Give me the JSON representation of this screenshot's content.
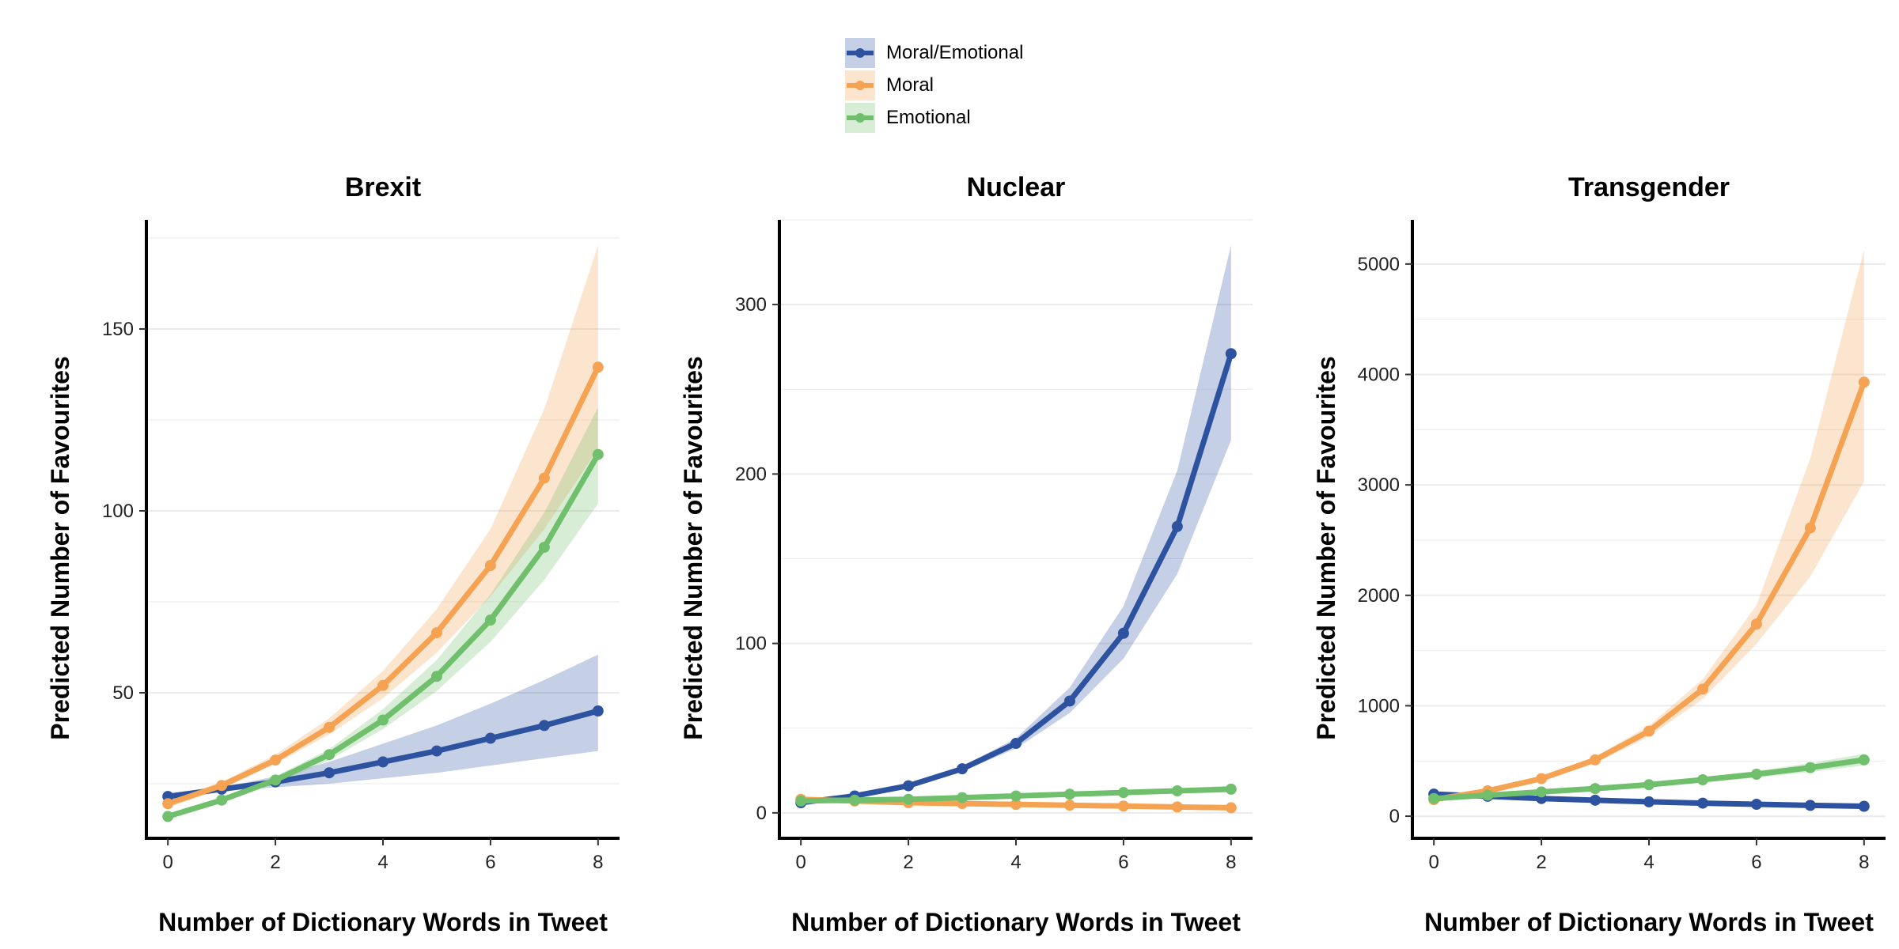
{
  "colors": {
    "moral_emotional": "#2d53a0",
    "moral": "#f5a352",
    "emotional": "#6fbf6c",
    "grid": "#ebebeb",
    "axis": "#000000"
  },
  "legend": {
    "items": [
      {
        "label": "Moral/Emotional",
        "color": "#2d53a0"
      },
      {
        "label": "Moral",
        "color": "#f5a352"
      },
      {
        "label": "Emotional",
        "color": "#6fbf6c"
      }
    ]
  },
  "chart_data": [
    {
      "type": "line",
      "title": "Brexit",
      "xlabel": "Number of Dictionary Words in Tweet",
      "ylabel": "Predicted Number of Favourites",
      "x": [
        0,
        1,
        2,
        3,
        4,
        5,
        6,
        7,
        8
      ],
      "xticks": [
        0,
        2,
        4,
        6,
        8
      ],
      "xlim": [
        -0.4,
        8.4
      ],
      "ylim": [
        10,
        180
      ],
      "yticks": [
        50,
        100,
        150
      ],
      "grid": true,
      "legend_position": "top-center",
      "series": [
        {
          "name": "Moral/Emotional",
          "color": "#2d53a0",
          "values": [
            21.5,
            23.5,
            25.5,
            28,
            31,
            34,
            37.5,
            41,
            45
          ],
          "lower": [
            21,
            23,
            24,
            25,
            26.5,
            28,
            30,
            32,
            34
          ],
          "upper": [
            22,
            24,
            27,
            31,
            36,
            41,
            47,
            53.5,
            60.5
          ]
        },
        {
          "name": "Moral",
          "color": "#f5a352",
          "values": [
            19.5,
            24.5,
            31.5,
            40.5,
            52,
            66.5,
            85,
            109,
            139.5
          ],
          "lower": [
            18.5,
            23.5,
            30.5,
            38.5,
            48.5,
            61,
            76.5,
            95,
            117
          ],
          "upper": [
            20.5,
            25.5,
            33,
            43,
            56,
            73,
            95,
            128,
            173
          ]
        },
        {
          "name": "Emotional",
          "color": "#6fbf6c",
          "values": [
            16,
            20.5,
            26,
            33,
            42.5,
            54.5,
            70,
            90,
            115.5
          ],
          "lower": [
            15.5,
            20,
            25,
            31.5,
            40,
            50.5,
            64,
            81,
            102
          ],
          "upper": [
            16.5,
            21,
            27,
            34.5,
            45.5,
            59,
            77,
            99.5,
            128.5
          ]
        }
      ]
    },
    {
      "type": "line",
      "title": "Nuclear",
      "xlabel": "Number of Dictionary Words in Tweet",
      "ylabel": "Predicted Number of Favourites",
      "x": [
        0,
        1,
        2,
        3,
        4,
        5,
        6,
        7,
        8
      ],
      "xticks": [
        0,
        2,
        4,
        6,
        8
      ],
      "xlim": [
        -0.4,
        8.4
      ],
      "ylim": [
        -15,
        350
      ],
      "yticks": [
        0,
        100,
        200,
        300
      ],
      "grid": true,
      "series": [
        {
          "name": "Moral/Emotional",
          "color": "#2d53a0",
          "values": [
            6,
            10,
            16,
            26,
            41,
            66,
            106,
            169,
            271
          ],
          "lower": [
            5.5,
            9.5,
            15,
            24.5,
            38,
            59,
            91,
            141,
            220
          ],
          "upper": [
            6.5,
            10.5,
            17,
            27.5,
            44,
            74,
            122,
            202,
            335
          ]
        },
        {
          "name": "Moral",
          "color": "#f5a352",
          "values": [
            8,
            7,
            6,
            5.5,
            5,
            4.5,
            4,
            3.5,
            3
          ],
          "lower": [
            7,
            6,
            5,
            4.5,
            3.5,
            3,
            2.5,
            2,
            1.5
          ],
          "upper": [
            9,
            8,
            7,
            6.5,
            6,
            5.5,
            5,
            4.5,
            4.5
          ]
        },
        {
          "name": "Emotional",
          "color": "#6fbf6c",
          "values": [
            7,
            7.5,
            8,
            9,
            10,
            11,
            12,
            13,
            14
          ],
          "lower": [
            6.5,
            7,
            7.5,
            8.5,
            9,
            10,
            10.5,
            11.5,
            12
          ],
          "upper": [
            7.5,
            8,
            8.5,
            9.5,
            11,
            12,
            13.5,
            14.5,
            16
          ]
        }
      ]
    },
    {
      "type": "line",
      "title": "Transgender",
      "xlabel": "Number of Dictionary Words in Tweet",
      "ylabel": "Predicted Number of Favourites",
      "x": [
        0,
        1,
        2,
        3,
        4,
        5,
        6,
        7,
        8
      ],
      "xticks": [
        0,
        2,
        4,
        6,
        8
      ],
      "xlim": [
        -0.4,
        8.4
      ],
      "ylim": [
        -200,
        5400
      ],
      "yticks": [
        0,
        1000,
        2000,
        3000,
        4000,
        5000
      ],
      "grid": true,
      "series": [
        {
          "name": "Moral/Emotional",
          "color": "#2d53a0",
          "values": [
            200,
            180,
            160,
            145,
            130,
            118,
            108,
            98,
            90
          ],
          "lower": [
            190,
            172,
            152,
            136,
            120,
            108,
            97,
            86,
            77
          ],
          "upper": [
            210,
            190,
            170,
            155,
            140,
            128,
            119,
            110,
            103
          ]
        },
        {
          "name": "Moral",
          "color": "#f5a352",
          "values": [
            150,
            230,
            340,
            510,
            770,
            1150,
            1740,
            2610,
            3930
          ],
          "lower": [
            140,
            215,
            320,
            480,
            720,
            1060,
            1560,
            2170,
            3030
          ],
          "upper": [
            160,
            245,
            360,
            540,
            820,
            1240,
            1910,
            3240,
            5130
          ]
        },
        {
          "name": "Emotional",
          "color": "#6fbf6c",
          "values": [
            160,
            190,
            220,
            250,
            285,
            330,
            380,
            440,
            510
          ],
          "lower": [
            150,
            180,
            208,
            235,
            265,
            305,
            350,
            400,
            460
          ],
          "upper": [
            170,
            200,
            232,
            265,
            305,
            355,
            410,
            480,
            565
          ]
        }
      ]
    }
  ]
}
